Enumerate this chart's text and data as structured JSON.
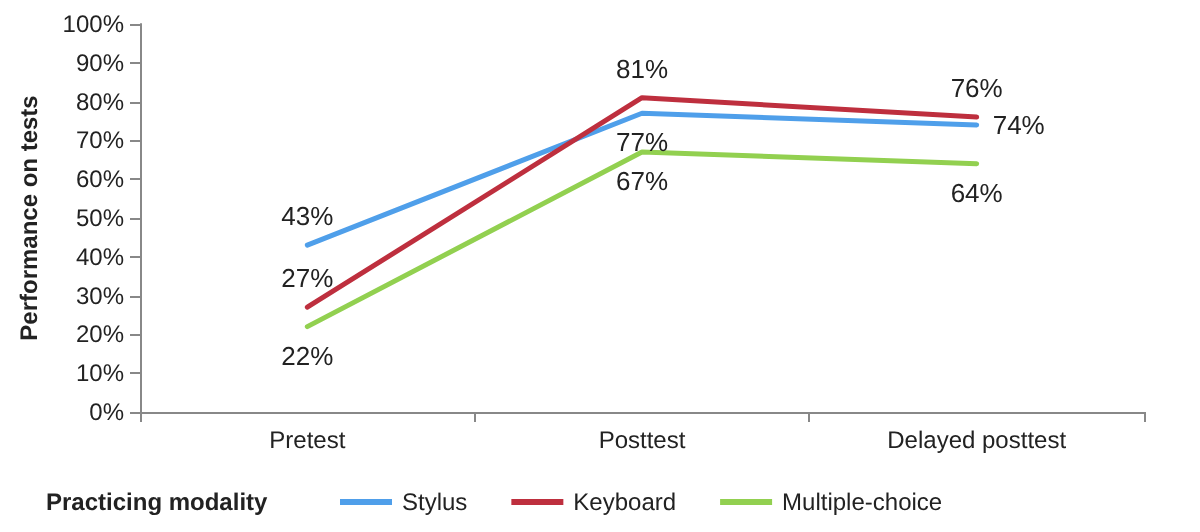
{
  "chart_data": {
    "type": "line",
    "ylabel": "Performance on tests",
    "legend_title": "Practicing modality",
    "categories": [
      "Pretest",
      "Posttest",
      "Delayed posttest"
    ],
    "series": [
      {
        "name": "Stylus",
        "color": "#4f9fea",
        "values": [
          43,
          77,
          74
        ],
        "value_labels": [
          "43%",
          "77%",
          "74%"
        ]
      },
      {
        "name": "Keyboard",
        "color": "#be2f3e",
        "values": [
          27,
          81,
          76
        ],
        "value_labels": [
          "27%",
          "81%",
          "76%"
        ]
      },
      {
        "name": "Multiple-choice",
        "color": "#92d050",
        "values": [
          22,
          67,
          64
        ],
        "value_labels": [
          "22%",
          "67%",
          "64%"
        ]
      }
    ],
    "ylim": [
      0,
      100
    ],
    "yticks": [
      {
        "value": 0,
        "label": "0%"
      },
      {
        "value": 10,
        "label": "10%"
      },
      {
        "value": 20,
        "label": "20%"
      },
      {
        "value": 30,
        "label": "30%"
      },
      {
        "value": 40,
        "label": "40%"
      },
      {
        "value": 50,
        "label": "50%"
      },
      {
        "value": 60,
        "label": "60%"
      },
      {
        "value": 70,
        "label": "70%"
      },
      {
        "value": 80,
        "label": "80%"
      },
      {
        "value": 90,
        "label": "90%"
      },
      {
        "value": 100,
        "label": "100%"
      }
    ],
    "grid": false,
    "legend": "bottom",
    "marker": "none",
    "line_style": "solid"
  }
}
